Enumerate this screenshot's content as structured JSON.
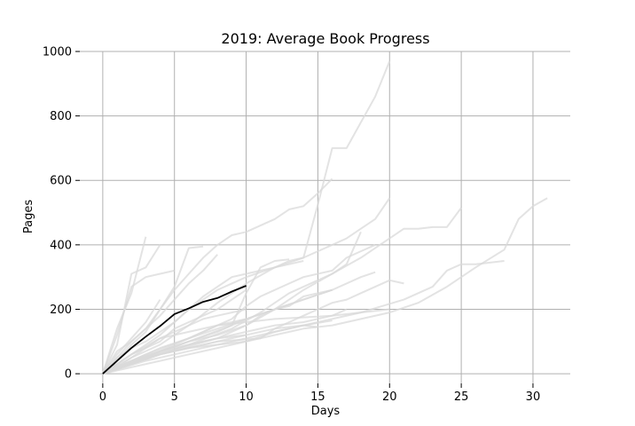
{
  "chart_data": {
    "type": "line",
    "title": "2019: Average Book Progress",
    "xlabel": "Days",
    "ylabel": "Pages",
    "xlim": [
      -1.6,
      32.6
    ],
    "ylim": [
      -30,
      1000
    ],
    "x_ticks": [
      0,
      5,
      10,
      15,
      20,
      25,
      30
    ],
    "y_ticks": [
      0,
      200,
      400,
      600,
      800,
      1000
    ],
    "grid": true,
    "colors": {
      "book_line": "#d9d9d9",
      "average_line": "#000000",
      "grid": "#b0b0b0"
    },
    "series": [
      {
        "x": [
          0,
          1,
          2,
          3
        ],
        "y": [
          0,
          140,
          250,
          425
        ]
      },
      {
        "x": [
          0,
          1,
          2,
          3,
          4
        ],
        "y": [
          0,
          90,
          310,
          330,
          400
        ]
      },
      {
        "x": [
          0,
          1,
          2,
          3,
          4
        ],
        "y": [
          0,
          60,
          110,
          160,
          230
        ]
      },
      {
        "x": [
          0,
          1,
          2,
          3,
          4,
          5
        ],
        "y": [
          0,
          120,
          270,
          300,
          310,
          320
        ]
      },
      {
        "x": [
          0,
          1,
          2,
          3,
          4,
          5,
          6,
          7,
          8
        ],
        "y": [
          0,
          70,
          100,
          140,
          180,
          230,
          280,
          320,
          370
        ]
      },
      {
        "x": [
          0,
          1,
          2,
          3,
          4,
          5,
          6,
          7
        ],
        "y": [
          0,
          40,
          90,
          130,
          200,
          270,
          390,
          395
        ]
      },
      {
        "x": [
          0,
          1,
          2,
          3,
          4,
          5,
          6,
          7,
          8,
          9,
          10,
          11,
          12,
          13,
          14,
          15,
          16
        ],
        "y": [
          0,
          50,
          100,
          140,
          200,
          260,
          310,
          360,
          400,
          430,
          440,
          460,
          480,
          510,
          520,
          560,
          605
        ]
      },
      {
        "x": [
          0,
          2,
          4,
          6,
          8,
          10,
          12,
          14,
          15,
          16,
          17,
          18,
          19,
          20
        ],
        "y": [
          0,
          60,
          120,
          200,
          260,
          300,
          330,
          360,
          525,
          700,
          700,
          780,
          860,
          970
        ]
      },
      {
        "x": [
          0,
          2,
          4,
          6,
          8,
          10,
          12,
          13,
          14,
          15,
          16,
          17,
          18,
          19,
          20
        ],
        "y": [
          0,
          50,
          90,
          150,
          220,
          280,
          330,
          350,
          360,
          380,
          400,
          420,
          450,
          480,
          545
        ]
      },
      {
        "x": [
          0,
          2,
          4,
          6,
          8,
          10,
          12,
          14,
          16,
          18,
          20,
          21,
          22,
          23,
          24,
          25
        ],
        "y": [
          0,
          40,
          70,
          100,
          120,
          150,
          200,
          260,
          310,
          360,
          420,
          450,
          450,
          455,
          455,
          515
        ]
      },
      {
        "x": [
          0,
          2,
          4,
          6,
          8,
          10,
          12,
          14,
          16,
          18,
          20,
          22,
          24,
          26,
          28,
          29,
          30,
          31
        ],
        "y": [
          0,
          30,
          60,
          80,
          90,
          100,
          120,
          140,
          150,
          170,
          190,
          220,
          270,
          330,
          385,
          480,
          520,
          545
        ]
      },
      {
        "x": [
          0,
          3,
          6,
          9,
          12,
          15,
          18,
          21,
          23,
          24,
          25,
          26,
          28
        ],
        "y": [
          0,
          40,
          70,
          100,
          130,
          160,
          190,
          230,
          270,
          320,
          340,
          340,
          350
        ]
      },
      {
        "x": [
          0,
          4,
          8,
          11,
          12,
          13,
          14,
          15,
          16,
          17,
          18,
          19,
          20,
          21
        ],
        "y": [
          0,
          60,
          100,
          110,
          140,
          160,
          180,
          200,
          220,
          230,
          250,
          270,
          290,
          280
        ]
      },
      {
        "x": [
          0,
          3,
          6,
          9,
          11,
          12,
          13,
          14,
          15,
          16,
          17,
          18
        ],
        "y": [
          0,
          50,
          90,
          140,
          190,
          220,
          250,
          270,
          290,
          310,
          340,
          440
        ]
      },
      {
        "x": [
          0,
          3,
          6,
          9,
          10,
          11,
          12,
          13,
          14,
          16,
          17,
          18,
          19
        ],
        "y": [
          0,
          60,
          110,
          170,
          210,
          240,
          260,
          280,
          300,
          320,
          360,
          380,
          400
        ]
      },
      {
        "x": [
          0,
          4,
          8,
          10,
          12,
          14,
          16
        ],
        "y": [
          0,
          70,
          130,
          170,
          200,
          230,
          260
        ]
      },
      {
        "x": [
          0,
          3,
          6,
          9,
          10,
          11,
          12,
          13
        ],
        "y": [
          0,
          50,
          100,
          150,
          250,
          330,
          350,
          355
        ]
      },
      {
        "x": [
          0,
          2,
          4,
          6,
          8,
          10,
          12,
          14,
          16,
          18,
          19
        ],
        "y": [
          0,
          40,
          80,
          110,
          140,
          170,
          200,
          230,
          260,
          300,
          315
        ]
      },
      {
        "x": [
          0,
          2,
          4,
          6,
          8,
          10,
          12,
          14,
          16,
          17
        ],
        "y": [
          0,
          30,
          60,
          90,
          110,
          130,
          150,
          160,
          180,
          200
        ]
      },
      {
        "x": [
          0,
          4,
          8,
          10,
          11,
          12,
          13,
          14,
          15,
          16
        ],
        "y": [
          0,
          60,
          110,
          150,
          180,
          200,
          210,
          240,
          250,
          260
        ]
      },
      {
        "x": [
          0,
          2,
          4,
          6,
          8,
          10,
          12,
          14,
          16
        ],
        "y": [
          0,
          20,
          40,
          60,
          80,
          100,
          130,
          150,
          165
        ]
      },
      {
        "x": [
          0,
          2,
          4,
          6,
          8,
          10,
          12,
          14,
          15
        ],
        "y": [
          0,
          30,
          60,
          80,
          100,
          120,
          140,
          150,
          145
        ]
      },
      {
        "x": [
          0,
          1,
          2,
          3,
          4,
          5,
          6,
          7,
          8,
          9,
          10
        ],
        "y": [
          0,
          30,
          60,
          80,
          100,
          140,
          160,
          180,
          200,
          230,
          260
        ]
      },
      {
        "x": [
          0,
          1,
          2,
          3,
          4,
          5,
          6,
          7,
          8,
          9,
          10
        ],
        "y": [
          0,
          20,
          50,
          80,
          110,
          130,
          150,
          170,
          180,
          190,
          200
        ]
      },
      {
        "x": [
          0,
          2,
          4,
          6,
          8,
          10
        ],
        "y": [
          0,
          40,
          70,
          90,
          110,
          120
        ]
      },
      {
        "x": [
          0,
          1,
          2,
          3,
          4,
          5,
          6,
          7,
          8,
          9,
          10,
          11,
          12,
          13,
          14
        ],
        "y": [
          0,
          50,
          80,
          100,
          130,
          160,
          200,
          240,
          270,
          300,
          310,
          320,
          330,
          340,
          350
        ]
      },
      {
        "x": [
          0,
          1,
          2,
          3,
          4,
          5,
          6,
          7,
          8,
          9,
          10
        ],
        "y": [
          0,
          25,
          35,
          50,
          70,
          90,
          110,
          130,
          150,
          160,
          170
        ]
      },
      {
        "x": [
          0,
          2,
          4,
          6,
          8,
          10,
          12,
          14,
          16,
          18,
          20
        ],
        "y": [
          0,
          60,
          110,
          130,
          150,
          160,
          170,
          175,
          180,
          190,
          200
        ]
      }
    ],
    "average_series": {
      "x": [
        0,
        1,
        2,
        3,
        4,
        5,
        6,
        7,
        8,
        9,
        10
      ],
      "y": [
        0,
        40,
        80,
        115,
        148,
        185,
        203,
        223,
        235,
        255,
        273
      ]
    }
  }
}
